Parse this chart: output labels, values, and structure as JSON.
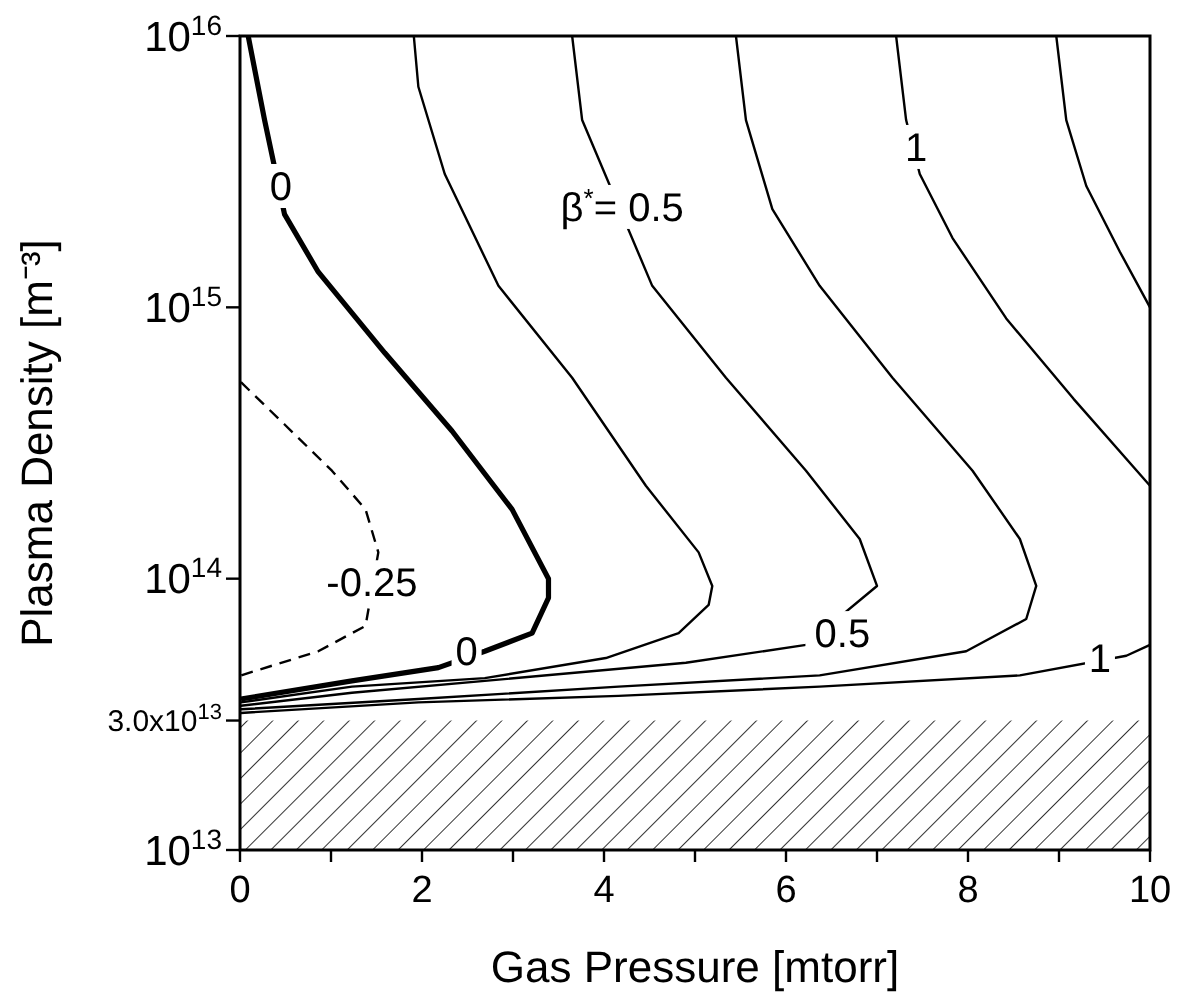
{
  "chart_data": {
    "type": "line",
    "xlabel": "Gas Pressure [mtorr]",
    "ylabel": "Plasma Density [m⁻³]",
    "log": "y",
    "grid": false,
    "xlim": [
      0,
      10
    ],
    "xticks": [
      0,
      {
        "value": 1,
        "label": null
      },
      2,
      {
        "value": 3,
        "label": null
      },
      4,
      {
        "value": 5,
        "label": null
      },
      6,
      {
        "value": 7,
        "label": null
      },
      8,
      {
        "value": 9,
        "label": null
      },
      10
    ],
    "ylim": [
      10000000000000.0,
      1e+16
    ],
    "yticks": [
      {
        "value": 10000000000000.0,
        "label": "10$^{13}$"
      },
      {
        "value": 30000000000000.0,
        "label": "3.0x10$^{13}$"
      },
      {
        "value": 100000000000000.0,
        "label": "10$^{14}$"
      },
      {
        "value": 1000000000000000.0,
        "label": "10$^{15}$"
      },
      {
        "value": 1e+16,
        "label": "10$^{16}$"
      }
    ],
    "series": [
      {
        "color": "#000000",
        "line_style": "solid",
        "x": [
          0.09,
          0.27,
          0.49,
          0.86,
          1.59,
          2.33,
          2.99,
          3.39,
          3.39,
          3.21,
          2.69,
          2.18,
          1.23,
          0.01
        ],
        "values": [
          1e+16,
          4900000000000000.0,
          2200000000000000.0,
          1350000000000000.0,
          680000000000000.0,
          350000000000000.0,
          180000000000000.0,
          100000000000000.0,
          85000000000000.0,
          63000000000000.0,
          54000000000000.0,
          47000000000000.0,
          42000000000000.0,
          36000000000000.0
        ]
      },
      {
        "color": "#000000",
        "line_style": "dashed",
        "x": [
          0.01,
          0.49,
          1.01,
          1.38,
          1.52,
          1.38,
          0.86,
          0.01
        ],
        "values": [
          530000000000000.0,
          370000000000000.0,
          250000000000000.0,
          180000000000000.0,
          125000000000000.0,
          67000000000000.0,
          54000000000000.0,
          44000000000000.0
        ]
      },
      {
        "color": "#000000",
        "line_style": "solid",
        "x": [
          1.91,
          1.96,
          2.25,
          2.84,
          3.65,
          4.46,
          5.04,
          5.19,
          5.15,
          4.82,
          4.02,
          2.69,
          1.23,
          0.01
        ],
        "values": [
          1e+16,
          6500000000000000.0,
          3100000000000000.0,
          1200000000000000.0,
          550000000000000.0,
          220000000000000.0,
          125000000000000.0,
          94000000000000.0,
          80000000000000.0,
          63000000000000.0,
          51000000000000.0,
          43000000000000.0,
          40000000000000.0,
          35000000000000.0
        ]
      },
      {
        "color": "#000000",
        "line_style": "solid",
        "x": [
          3.65,
          3.76,
          4.53,
          5.34,
          6.22,
          6.81,
          7.0,
          6.22,
          4.9,
          2.69,
          1.23,
          0.01
        ],
        "values": [
          1e+16,
          4900000000000000.0,
          1200000000000000.0,
          550000000000000.0,
          250000000000000.0,
          140000000000000.0,
          94000000000000.0,
          57000000000000.0,
          49000000000000.0,
          42000000000000.0,
          38000000000000.0,
          34000000000000.0
        ]
      },
      {
        "color": "#000000",
        "line_style": "solid",
        "x": [
          5.45,
          5.56,
          5.85,
          6.37,
          7.17,
          8.05,
          8.57,
          8.75,
          8.64,
          7.98,
          6.37,
          4.16,
          1.96,
          0.01
        ],
        "values": [
          1e+16,
          4900000000000000.0,
          2300000000000000.0,
          1200000000000000.0,
          550000000000000.0,
          250000000000000.0,
          140000000000000.0,
          94000000000000.0,
          71000000000000.0,
          54000000000000.0,
          44000000000000.0,
          40000000000000.0,
          36000000000000.0,
          33000000000000.0
        ]
      },
      {
        "color": "#000000",
        "line_style": "solid",
        "x": [
          7.21,
          7.32,
          7.47,
          7.83,
          8.42,
          9.16,
          10,
          null,
          10,
          9.74,
          8.57,
          6.37,
          4.16,
          1.96,
          0.01
        ],
        "values": [
          1e+16,
          4900000000000000.0,
          3100000000000000.0,
          1800000000000000.0,
          910000000000000.0,
          460000000000000.0,
          220000000000000.0,
          null,
          57000000000000.0,
          52000000000000.0,
          44000000000000.0,
          40000000000000.0,
          37000000000000.0,
          35000000000000.0,
          32000000000000.0
        ]
      },
      {
        "color": "#000000",
        "line_style": "solid",
        "x": [
          8.97,
          9.08,
          9.3,
          9.67,
          10
        ],
        "values": [
          1e+16,
          4900000000000000.0,
          2800000000000000.0,
          1600000000000000.0,
          1000000000000000.0
        ]
      }
    ],
    "bands": [
      {
        "axis": "y",
        "from": 10000000000000.0,
        "to": 30000000000000.0,
        "color": "#000000"
      }
    ],
    "annotations": [
      {
        "text": "0",
        "x": 0.45,
        "y": 2800000000000000.0
      },
      "β$^{*}$= 0.5",
      {
        "text": "1",
        "x": 7.43,
        "y": 3900000000000000.0
      },
      {
        "text": "-0.25",
        "x": 1.45,
        "y": 97000000000000.0
      },
      {
        "text": "0",
        "x": 2.49,
        "y": 54000000000000.0
      },
      {
        "text": "0.5",
        "x": 6.62,
        "y": 63000000000000.0
      },
      {
        "text": "1",
        "x": 9.45,
        "y": 51000000000000.0
      }
    ]
  }
}
